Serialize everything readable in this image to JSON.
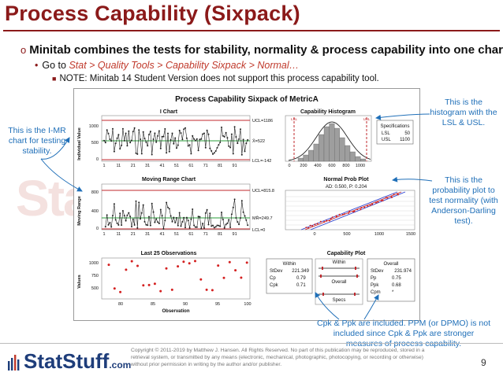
{
  "slide": {
    "title": "Process Capability (Sixpack)",
    "bullet1": "Minitab combines the tests for stability, normality & process capability into one chart.",
    "bullet2_prefix": "Go to ",
    "bullet2_path": "Stat > Quality Tools > Capability Sixpack > Normal…",
    "bullet3": "NOTE: Minitab 14 Student Version does not support this process capability tool.",
    "page_number": "9"
  },
  "callouts": {
    "imr": "This is the I-MR chart for testing stability.",
    "histogram": "This is the histogram with the LSL & USL.",
    "probability": "This is the probability plot to test normality (with Anderson-Darling test).",
    "cpk": "Cpk & Ppk are included.  PPM (or DPMO) is not included since Cpk & Ppk are stronger measures of process capability."
  },
  "sixpack": {
    "main_title": "Process Capability Sixpack of MetricA",
    "i_chart": {
      "title": "I Chart",
      "ylabel": "Individual Value",
      "ucl": "UCL=1186",
      "mean": "X̄=522",
      "lcl": "LCL=-142",
      "yticks": [
        "1000",
        "500",
        "0"
      ],
      "xticks": [
        "1",
        "11",
        "21",
        "31",
        "41",
        "51",
        "61",
        "71",
        "81",
        "91"
      ]
    },
    "mr_chart": {
      "title": "Moving Range Chart",
      "ylabel": "Moving Range",
      "ucl": "UCL=815.8",
      "mean": "MR̄=249.7",
      "lcl": "LCL=0",
      "yticks": [
        "800",
        "400",
        "0"
      ],
      "xticks": [
        "1",
        "11",
        "21",
        "31",
        "41",
        "51",
        "61",
        "71",
        "81",
        "91"
      ]
    },
    "last25": {
      "title": "Last 25 Observations",
      "ylabel": "Values",
      "xlabel": "Observation",
      "yticks": [
        "1000",
        "750",
        "500"
      ],
      "xticks": [
        "80",
        "85",
        "90",
        "95",
        "100"
      ]
    },
    "histogram": {
      "title": "Capability Histogram",
      "lsl_tag": "LSL",
      "usl_tag": "USL",
      "xticks": [
        "0",
        "200",
        "400",
        "600",
        "800",
        "1000"
      ],
      "spec_title": "Specifications",
      "lsl_label": "LSL",
      "lsl_value": "50",
      "usl_label": "USL",
      "usl_value": "1100"
    },
    "prob_plot": {
      "title": "Normal Prob Plot",
      "subtitle": "AD: 0.500, P: 0.204",
      "xticks": [
        "0",
        "500",
        "1000",
        "1500"
      ]
    },
    "capability_plot": {
      "title": "Capability Plot",
      "within_title": "Within",
      "within_stdev_label": "StDev",
      "within_stdev": "221.349",
      "cp_label": "Cp",
      "cp": "0.79",
      "cpk_label": "Cpk",
      "cpk": "0.71",
      "overall_title": "Overall",
      "overall_stdev_label": "StDev",
      "overall_stdev": "231.974",
      "pp_label": "Pp",
      "pp": "0.75",
      "ppk_label": "Ppk",
      "ppk": "0.68",
      "cpm_label": "Cpm",
      "cpm": "*",
      "bar_within": "Within",
      "bar_overall": "Overall",
      "bar_specs": "Specs"
    }
  },
  "watermark": "StatStuff",
  "footer": {
    "logo_stat": "StatStuff",
    "logo_com": ".com",
    "copyright": "Copyright © 2011-2019 by Matthew J. Hansen. All Rights Reserved. No part of this publication may be reproduced, stored in a retrieval system, or transmitted by any means (electronic, mechanical, photographic, photocopying, or recording or otherwise) without prior permission in writing by the author and/or publisher."
  }
}
